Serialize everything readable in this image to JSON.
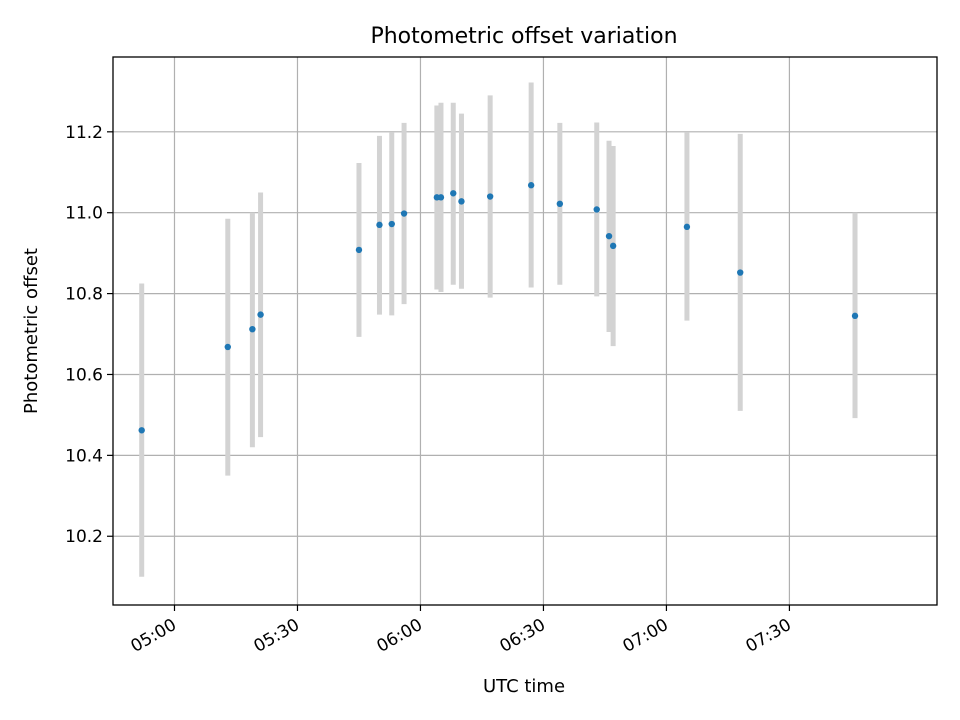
{
  "chart_data": {
    "type": "scatter",
    "title": "Photometric offset variation",
    "xlabel": "UTC time",
    "ylabel": "Photometric offset",
    "x_axis_type": "time",
    "xlim": [
      "04:45",
      "08:06"
    ],
    "ylim": [
      10.03,
      11.385
    ],
    "x_ticks": [
      "05:00",
      "05:30",
      "06:00",
      "06:30",
      "07:00",
      "07:30"
    ],
    "y_ticks": [
      10.2,
      10.4,
      10.6,
      10.8,
      11.0,
      11.2
    ],
    "grid": true,
    "legend": "none",
    "point_color": "#1f77b4",
    "errorbar_color": "#d3d3d3",
    "points": [
      {
        "x": "04:52",
        "y": 10.462,
        "ylow": 10.1,
        "yhigh": 10.825
      },
      {
        "x": "05:13",
        "y": 10.668,
        "ylow": 10.35,
        "yhigh": 10.985
      },
      {
        "x": "05:19",
        "y": 10.712,
        "ylow": 10.42,
        "yhigh": 11.0
      },
      {
        "x": "05:21",
        "y": 10.748,
        "ylow": 10.445,
        "yhigh": 11.05
      },
      {
        "x": "05:45",
        "y": 10.908,
        "ylow": 10.693,
        "yhigh": 11.123
      },
      {
        "x": "05:50",
        "y": 10.97,
        "ylow": 10.748,
        "yhigh": 11.19
      },
      {
        "x": "05:53",
        "y": 10.972,
        "ylow": 10.746,
        "yhigh": 11.198
      },
      {
        "x": "05:56",
        "y": 10.998,
        "ylow": 10.774,
        "yhigh": 11.222
      },
      {
        "x": "06:04",
        "y": 11.038,
        "ylow": 10.81,
        "yhigh": 11.265
      },
      {
        "x": "06:05",
        "y": 11.038,
        "ylow": 10.804,
        "yhigh": 11.272
      },
      {
        "x": "06:08",
        "y": 11.048,
        "ylow": 10.822,
        "yhigh": 11.272
      },
      {
        "x": "06:10",
        "y": 11.028,
        "ylow": 10.812,
        "yhigh": 11.245
      },
      {
        "x": "06:17",
        "y": 11.04,
        "ylow": 10.79,
        "yhigh": 11.29
      },
      {
        "x": "06:27",
        "y": 11.068,
        "ylow": 10.815,
        "yhigh": 11.322
      },
      {
        "x": "06:34",
        "y": 11.022,
        "ylow": 10.822,
        "yhigh": 11.222
      },
      {
        "x": "06:43",
        "y": 11.008,
        "ylow": 10.793,
        "yhigh": 11.223
      },
      {
        "x": "06:46",
        "y": 10.942,
        "ylow": 10.705,
        "yhigh": 11.178
      },
      {
        "x": "06:47",
        "y": 10.918,
        "ylow": 10.67,
        "yhigh": 11.165
      },
      {
        "x": "07:05",
        "y": 10.965,
        "ylow": 10.733,
        "yhigh": 11.198
      },
      {
        "x": "07:18",
        "y": 10.852,
        "ylow": 10.51,
        "yhigh": 11.195
      },
      {
        "x": "07:46",
        "y": 10.745,
        "ylow": 10.492,
        "yhigh": 11.0
      }
    ]
  }
}
